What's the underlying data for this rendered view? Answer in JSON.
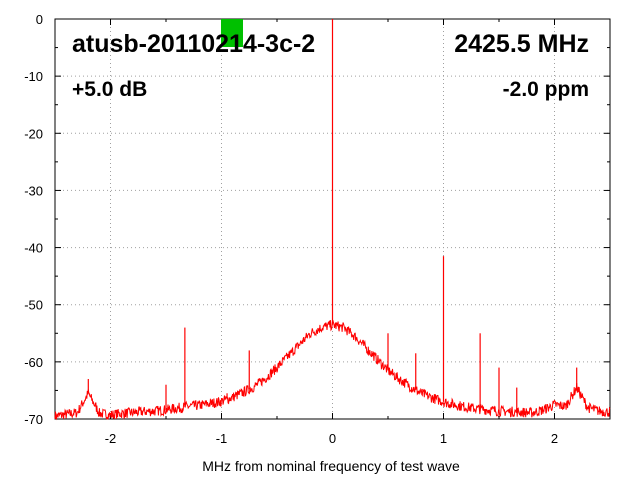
{
  "chart_data": {
    "type": "line",
    "title": "",
    "xlabel": "MHz from nominal frequency of test wave",
    "ylabel": "",
    "xlim": [
      -2.5,
      2.5
    ],
    "ylim": [
      -70,
      0
    ],
    "x_ticks": [
      -2,
      -1,
      0,
      1,
      2
    ],
    "y_ticks": [
      0,
      -10,
      -20,
      -30,
      -40,
      -50,
      -60,
      -70
    ],
    "grid": true,
    "annotations": {
      "device": "atusb-20110214-3c-2",
      "frequency": "2425.5 MHz",
      "gain": "+5.0 dB",
      "drift": "-2.0 ppm"
    },
    "marker_color": "#00c000",
    "line_color": "#ff0000",
    "series": [
      {
        "x": [
          -2.5,
          -2.4,
          -2.3,
          -2.2,
          -2.1,
          -2.0,
          -1.9,
          -1.8,
          -1.7,
          -1.6,
          -1.5,
          -1.4,
          -1.3,
          -1.2,
          -1.1,
          -1.0,
          -0.9,
          -0.8,
          -0.7,
          -0.6,
          -0.5,
          -0.4,
          -0.3,
          -0.2,
          -0.1,
          0.0,
          0.1,
          0.2,
          0.3,
          0.4,
          0.5,
          0.6,
          0.7,
          0.8,
          0.9,
          1.0,
          1.1,
          1.2,
          1.3,
          1.4,
          1.5,
          1.6,
          1.7,
          1.8,
          1.9,
          2.0,
          2.1,
          2.2,
          2.3,
          2.4,
          2.5
        ],
        "y": [
          -69.5,
          -69.2,
          -68.9,
          -65.5,
          -69.0,
          -69.3,
          -69.0,
          -68.9,
          -68.7,
          -68.6,
          -68.4,
          -68.1,
          -67.8,
          -67.6,
          -67.3,
          -66.9,
          -66.2,
          -65.3,
          -64.3,
          -62.8,
          -61.0,
          -59.0,
          -57.0,
          -55.0,
          -54.0,
          -53.5,
          -54.0,
          -55.5,
          -57.5,
          -59.5,
          -61.5,
          -63.0,
          -64.3,
          -65.5,
          -66.3,
          -67.0,
          -67.5,
          -67.9,
          -68.2,
          -68.4,
          -68.6,
          -68.7,
          -68.8,
          -68.9,
          -68.4,
          -67.5,
          -67.8,
          -64.5,
          -68.0,
          -68.6,
          -68.8
        ]
      }
    ],
    "spikes": [
      {
        "x": -2.2,
        "y": -63.0
      },
      {
        "x": -1.33,
        "y": -54.0
      },
      {
        "x": -1.5,
        "y": -64.0
      },
      {
        "x": -0.75,
        "y": -58.0
      },
      {
        "x": -0.95,
        "y": -65.5
      },
      {
        "x": 0.0,
        "y": 0.0
      },
      {
        "x": 0.5,
        "y": -55.0
      },
      {
        "x": 0.75,
        "y": -58.5
      },
      {
        "x": 1.0,
        "y": -41.5
      },
      {
        "x": 1.33,
        "y": -55.0
      },
      {
        "x": 1.5,
        "y": -61.0
      },
      {
        "x": 1.66,
        "y": -64.5
      },
      {
        "x": 2.2,
        "y": -61.0
      }
    ]
  }
}
